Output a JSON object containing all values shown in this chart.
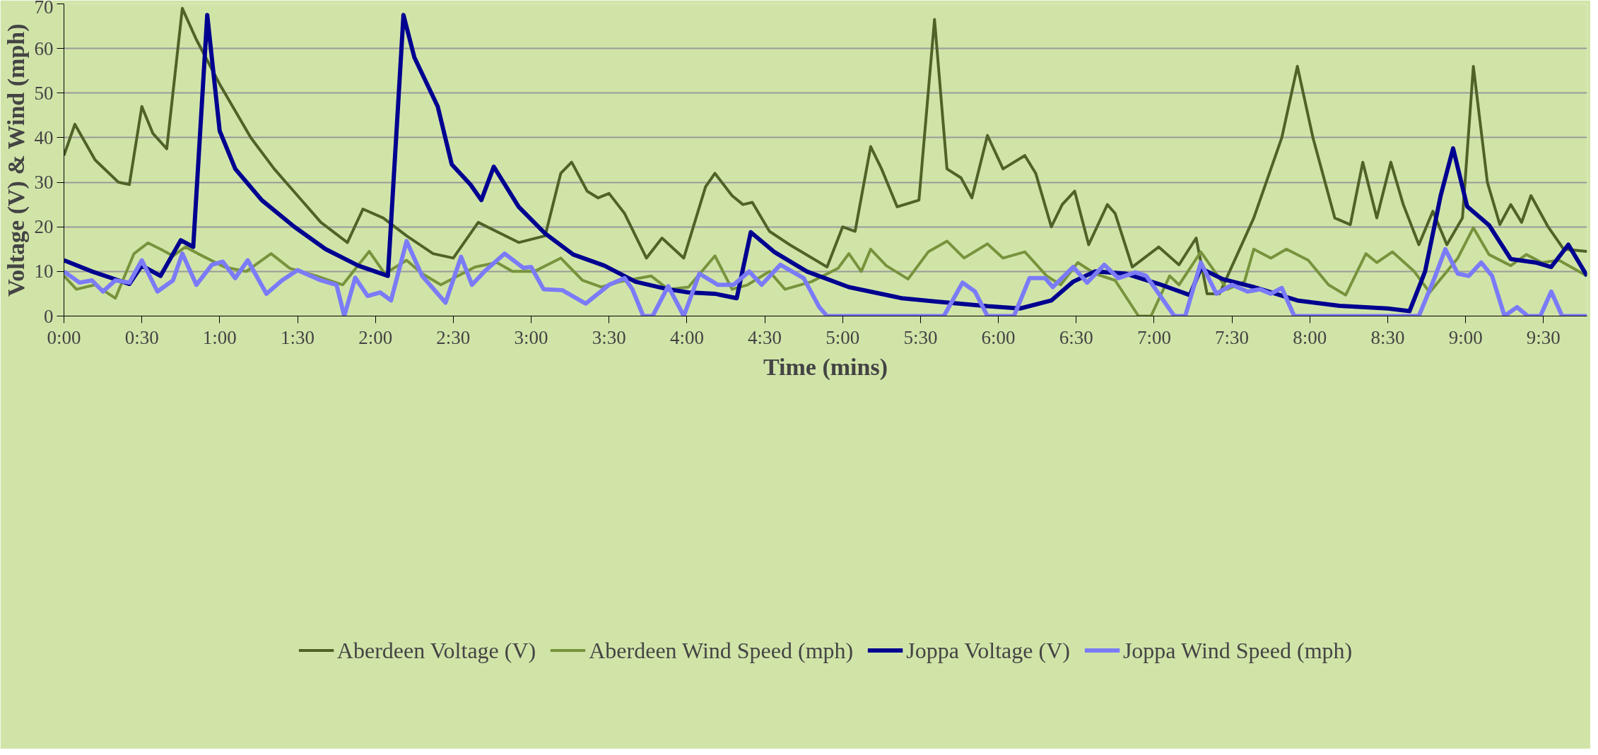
{
  "chart_data": {
    "type": "line",
    "xlabel": "Time (mins)",
    "ylabel": "Voltage (V) & Wind (mph)",
    "xlim": [
      0,
      9.78
    ],
    "ylim": [
      0,
      70
    ],
    "xticks": [
      {
        "value": 0,
        "label": "0:00"
      },
      {
        "value": 0.5,
        "label": "0:30"
      },
      {
        "value": 1,
        "label": "1:00"
      },
      {
        "value": 1.5,
        "label": "1:30"
      },
      {
        "value": 2,
        "label": "2:00"
      },
      {
        "value": 2.5,
        "label": "2:30"
      },
      {
        "value": 3,
        "label": "3:00"
      },
      {
        "value": 3.5,
        "label": "3:30"
      },
      {
        "value": 4,
        "label": "4:00"
      },
      {
        "value": 4.5,
        "label": "4:30"
      },
      {
        "value": 5,
        "label": "5:00"
      },
      {
        "value": 5.5,
        "label": "5:30"
      },
      {
        "value": 6,
        "label": "6:00"
      },
      {
        "value": 6.5,
        "label": "6:30"
      },
      {
        "value": 7,
        "label": "7:00"
      },
      {
        "value": 7.5,
        "label": "7:30"
      },
      {
        "value": 8,
        "label": "8:00"
      },
      {
        "value": 8.5,
        "label": "8:30"
      },
      {
        "value": 9,
        "label": "9:00"
      },
      {
        "value": 9.5,
        "label": "9:30"
      }
    ],
    "yticks": [
      0,
      10,
      20,
      30,
      40,
      50,
      60,
      70
    ],
    "grid": "y",
    "legend": "bottom",
    "marker": "none",
    "line_style": "solid",
    "series": [
      {
        "name": "Aberdeen Voltage (V)",
        "color": "#4f6228",
        "x": [
          0,
          0.07,
          0.2,
          0.35,
          0.42,
          0.5,
          0.57,
          0.66,
          0.76,
          0.85,
          1.0,
          1.2,
          1.35,
          1.5,
          1.65,
          1.82,
          1.92,
          2.05,
          2.2,
          2.37,
          2.5,
          2.66,
          2.92,
          3.09,
          3.19,
          3.26,
          3.36,
          3.43,
          3.5,
          3.6,
          3.74,
          3.84,
          3.98,
          4.12,
          4.18,
          4.29,
          4.36,
          4.42,
          4.53,
          4.66,
          4.9,
          5.0,
          5.08,
          5.18,
          5.25,
          5.35,
          5.49,
          5.59,
          5.67,
          5.76,
          5.83,
          5.93,
          6.03,
          6.17,
          6.24,
          6.34,
          6.41,
          6.49,
          6.58,
          6.7,
          6.75,
          6.86,
          7.03,
          7.16,
          7.27,
          7.34,
          7.42,
          7.64,
          7.82,
          7.92,
          8.02,
          8.16,
          8.26,
          8.34,
          8.43,
          8.52,
          8.6,
          8.7,
          8.79,
          8.88,
          8.98,
          9.05,
          9.14,
          9.22,
          9.29,
          9.36,
          9.42,
          9.53,
          9.63,
          9.78
        ],
        "values": [
          36,
          43,
          35,
          30,
          29.5,
          47,
          41,
          37.5,
          69,
          62,
          52,
          40,
          33,
          27,
          21,
          16.5,
          24,
          22,
          18,
          14,
          13,
          21,
          16.5,
          18,
          32,
          34.5,
          28,
          26.5,
          27.5,
          23,
          13,
          17.5,
          13,
          29,
          32,
          27,
          25,
          25.5,
          19,
          16,
          11,
          20,
          19,
          38,
          33,
          24.5,
          26,
          66.5,
          33,
          31,
          26.5,
          40.5,
          33,
          36,
          32,
          20,
          25,
          28,
          16,
          25,
          23,
          11,
          15.5,
          11.5,
          17.5,
          5,
          5,
          22,
          40,
          56,
          40,
          22,
          20.5,
          34.5,
          22,
          34.5,
          25,
          16,
          23.5,
          16,
          22,
          56,
          30,
          20.5,
          25,
          21,
          27,
          20,
          15,
          14.5
        ]
      },
      {
        "name": "Aberdeen Wind Speed (mph)",
        "color": "#77933c",
        "x": [
          0,
          0.08,
          0.2,
          0.33,
          0.45,
          0.54,
          0.62,
          0.7,
          0.78,
          0.86,
          1.03,
          1.17,
          1.33,
          1.45,
          1.62,
          1.79,
          1.96,
          2.06,
          2.2,
          2.3,
          2.42,
          2.64,
          2.78,
          2.88,
          3.02,
          3.19,
          3.33,
          3.45,
          3.57,
          3.77,
          3.88,
          4.01,
          4.18,
          4.29,
          4.39,
          4.53,
          4.63,
          4.8,
          4.97,
          5.04,
          5.12,
          5.18,
          5.28,
          5.42,
          5.55,
          5.67,
          5.78,
          5.93,
          6.03,
          6.17,
          6.31,
          6.4,
          6.51,
          6.62,
          6.75,
          6.9,
          6.98,
          7.1,
          7.16,
          7.3,
          7.47,
          7.58,
          7.64,
          7.75,
          7.85,
          7.99,
          8.12,
          8.23,
          8.36,
          8.43,
          8.53,
          8.67,
          8.77,
          8.95,
          9.05,
          9.15,
          9.29,
          9.39,
          9.49,
          9.6,
          9.78
        ],
        "values": [
          9,
          6,
          7,
          4,
          14,
          16.4,
          15,
          13.5,
          15.5,
          14,
          11,
          10,
          14,
          10.7,
          9,
          7,
          14.5,
          9.5,
          12.5,
          9.5,
          7,
          11,
          12,
          10,
          10,
          13,
          8,
          6.5,
          7.7,
          9,
          6,
          6.5,
          13.5,
          6,
          7,
          10,
          6,
          7.7,
          10.7,
          14,
          10,
          15,
          11.3,
          8.3,
          14.4,
          16.8,
          13,
          16.2,
          13,
          14.4,
          9,
          7,
          12,
          9.5,
          8,
          0,
          0,
          9,
          7,
          14.4,
          6,
          7.7,
          15,
          13,
          15,
          12.5,
          7,
          4.7,
          14,
          12,
          14.4,
          10,
          5.3,
          13,
          19.8,
          13.8,
          11.3,
          13.8,
          12,
          12.5,
          9
        ]
      },
      {
        "name": "Joppa Voltage (V)",
        "color": "#000090",
        "x": [
          0,
          0.18,
          0.35,
          0.42,
          0.5,
          0.62,
          0.75,
          0.83,
          0.92,
          1.0,
          1.1,
          1.27,
          1.48,
          1.68,
          1.89,
          2.08,
          2.18,
          2.25,
          2.4,
          2.49,
          2.61,
          2.68,
          2.76,
          2.92,
          3.09,
          3.27,
          3.47,
          3.67,
          3.88,
          4.01,
          4.18,
          4.32,
          4.41,
          4.56,
          4.77,
          5.04,
          5.38,
          5.59,
          5.93,
          6.14,
          6.34,
          6.48,
          6.62,
          6.82,
          7.03,
          7.23,
          7.3,
          7.44,
          7.64,
          7.92,
          8.19,
          8.5,
          8.64,
          8.74,
          8.84,
          8.92,
          9.01,
          9.15,
          9.29,
          9.45,
          9.55,
          9.66,
          9.78
        ],
        "values": [
          12.5,
          10,
          8,
          7.2,
          11.3,
          9,
          17,
          15.5,
          67.5,
          41.5,
          33,
          26,
          20,
          15,
          11.3,
          9,
          67.5,
          58,
          47,
          34,
          29.5,
          26,
          33.5,
          24.5,
          18.5,
          13.8,
          11.3,
          7.7,
          6,
          5.3,
          5,
          4,
          18.8,
          14.4,
          10,
          6.5,
          4,
          3.3,
          2.2,
          1.7,
          3.5,
          7.7,
          10,
          9.5,
          7.2,
          4.7,
          10.7,
          8.3,
          6.5,
          3.5,
          2.3,
          1.7,
          1.1,
          10,
          27,
          37.6,
          24.6,
          20.4,
          12.8,
          12,
          11,
          16,
          9
        ]
      },
      {
        "name": "Joppa Wind Speed (mph)",
        "color": "#7b7bf7",
        "x": [
          0,
          0.1,
          0.18,
          0.25,
          0.33,
          0.42,
          0.5,
          0.6,
          0.7,
          0.76,
          0.85,
          0.95,
          1.02,
          1.1,
          1.18,
          1.3,
          1.4,
          1.5,
          1.65,
          1.75,
          1.8,
          1.87,
          1.95,
          2.03,
          2.1,
          2.2,
          2.3,
          2.45,
          2.55,
          2.62,
          2.7,
          2.83,
          2.95,
          3.0,
          3.08,
          3.2,
          3.35,
          3.5,
          3.6,
          3.65,
          3.72,
          3.78,
          3.88,
          3.98,
          4.08,
          4.2,
          4.3,
          4.4,
          4.48,
          4.6,
          4.75,
          4.85,
          4.9,
          5.5,
          5.65,
          5.77,
          5.85,
          5.93,
          6.1,
          6.2,
          6.3,
          6.35,
          6.48,
          6.57,
          6.68,
          6.77,
          6.88,
          6.95,
          7.05,
          7.13,
          7.2,
          7.3,
          7.4,
          7.5,
          7.6,
          7.68,
          7.75,
          7.82,
          7.9,
          8.6,
          8.7,
          8.8,
          8.87,
          8.95,
          9.02,
          9.1,
          9.17,
          9.25,
          9.33,
          9.4,
          9.48,
          9.55,
          9.62,
          9.78
        ],
        "values": [
          10,
          7.5,
          8,
          5.5,
          8,
          7.5,
          12.5,
          5.5,
          8,
          14,
          7,
          11.5,
          12.2,
          8.5,
          12.5,
          5,
          8,
          10.3,
          8,
          7,
          0,
          8.6,
          4.5,
          5.3,
          3.5,
          16.8,
          9,
          3,
          13.3,
          7,
          10,
          14,
          10.8,
          11,
          6,
          5.8,
          2.8,
          7,
          8.5,
          6,
          0,
          0,
          6.7,
          0,
          9.5,
          7,
          7,
          10,
          7,
          11.5,
          8.5,
          2,
          0,
          0,
          0,
          7.5,
          5.5,
          0,
          0,
          8.5,
          8.5,
          6.5,
          11,
          7.5,
          11.5,
          8.5,
          9.8,
          9,
          4,
          0,
          0,
          12,
          5,
          7,
          5.5,
          6,
          5,
          6.3,
          0,
          0,
          0,
          8.5,
          15,
          9.5,
          9,
          12,
          9,
          0,
          2,
          0,
          0,
          5.5,
          0,
          0
        ]
      }
    ]
  }
}
